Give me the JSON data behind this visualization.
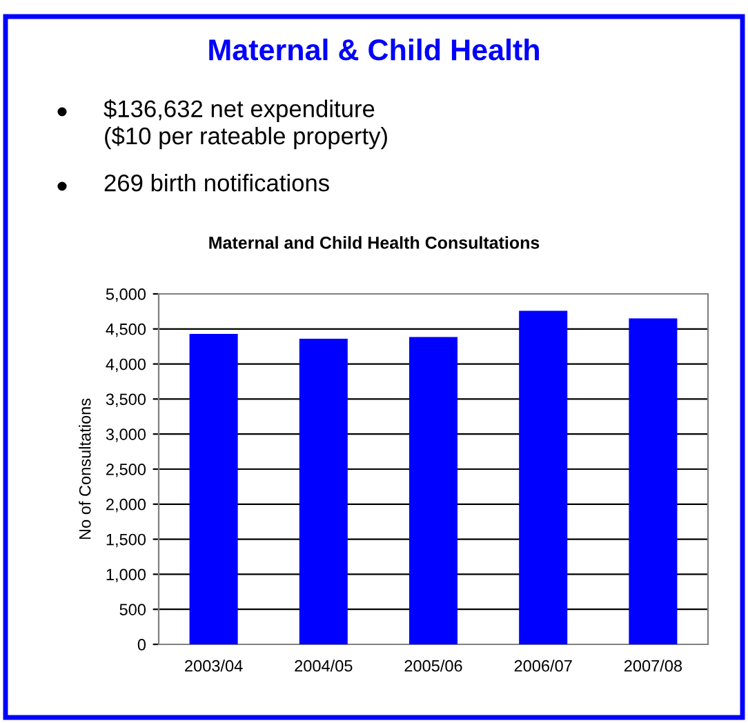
{
  "chart_data": {
    "type": "bar",
    "title": "Maternal & Child Health",
    "subtitle": "Maternal and Child Health Consultations",
    "annotations": [
      "$136,632 net expenditure\n($10 per rateable property)",
      "269 birth notifications"
    ],
    "ylabel": "No of Consultations",
    "categories": [
      "2003/04",
      "2004/05",
      "2005/06",
      "2006/07",
      "2007/08"
    ],
    "values": [
      4430,
      4360,
      4385,
      4760,
      4650
    ],
    "color": "#0000ff",
    "ylim": [
      0,
      5000
    ],
    "yticks": [
      {
        "value": 0,
        "label": "0"
      },
      {
        "value": 500,
        "label": "500"
      },
      {
        "value": 1000,
        "label": "1,000"
      },
      {
        "value": 1500,
        "label": "1,500"
      },
      {
        "value": 2000,
        "label": "2,000"
      },
      {
        "value": 2500,
        "label": "2,500"
      },
      {
        "value": 3000,
        "label": "3,000"
      },
      {
        "value": 3500,
        "label": "3,500"
      },
      {
        "value": 4000,
        "label": "4,000"
      },
      {
        "value": 4500,
        "label": "4,500"
      },
      {
        "value": 5000,
        "label": "5,000"
      }
    ],
    "grid": "y"
  }
}
